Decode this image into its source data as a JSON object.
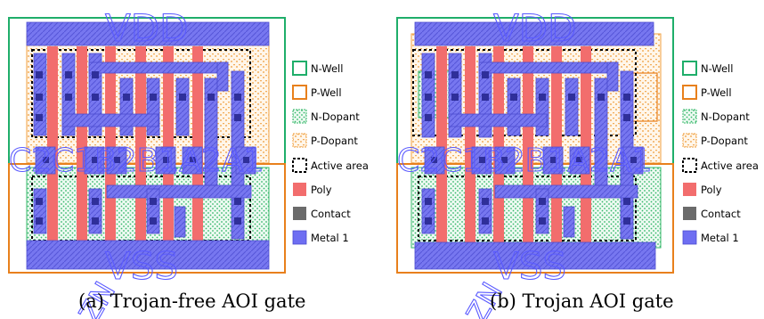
{
  "panels": [
    {
      "id": "a",
      "caption": "(a) Trojan-free AOI gate",
      "labels": {
        "vdd": "VDD",
        "vss": "VSS",
        "inputs": "C2C1B2B1A2A1",
        "output": "ZN"
      },
      "legend": [
        {
          "label": "N-Well",
          "kind": "nwell"
        },
        {
          "label": "P-Well",
          "kind": "pwell"
        },
        {
          "label": "N-Dopant",
          "kind": "ndopant"
        },
        {
          "label": "P-Dopant",
          "kind": "pdopant"
        },
        {
          "label": "Active area",
          "kind": "active"
        },
        {
          "label": "Poly",
          "kind": "poly"
        },
        {
          "label": "Contact",
          "kind": "contact"
        },
        {
          "label": "Metal 1",
          "kind": "metal"
        }
      ]
    },
    {
      "id": "b",
      "caption": "(b) Trojan AOI gate",
      "labels": {
        "vdd": "VDD",
        "vss": "VSS",
        "inputs": "C2C1B2B1A2A1",
        "output": "ZN"
      },
      "legend": [
        {
          "label": "N-Well",
          "kind": "nwell"
        },
        {
          "label": "P-Well",
          "kind": "pwell"
        },
        {
          "label": "N-Dopant",
          "kind": "ndopant"
        },
        {
          "label": "P-Dopant",
          "kind": "pdopant"
        },
        {
          "label": "Active area",
          "kind": "active"
        },
        {
          "label": "Poly",
          "kind": "poly"
        },
        {
          "label": "Contact",
          "kind": "contact"
        },
        {
          "label": "Metal 1",
          "kind": "metal"
        }
      ]
    }
  ],
  "colors": {
    "nwell": "#1fae6a",
    "pwell": "#e8801c",
    "ndopant": "#36b86a",
    "pdopant": "#f0a040",
    "active": "#000000",
    "poly": "#f26d6d",
    "contact": "#6b6b6b",
    "metal": "#6e6ef2",
    "label": "#4b4bff"
  }
}
